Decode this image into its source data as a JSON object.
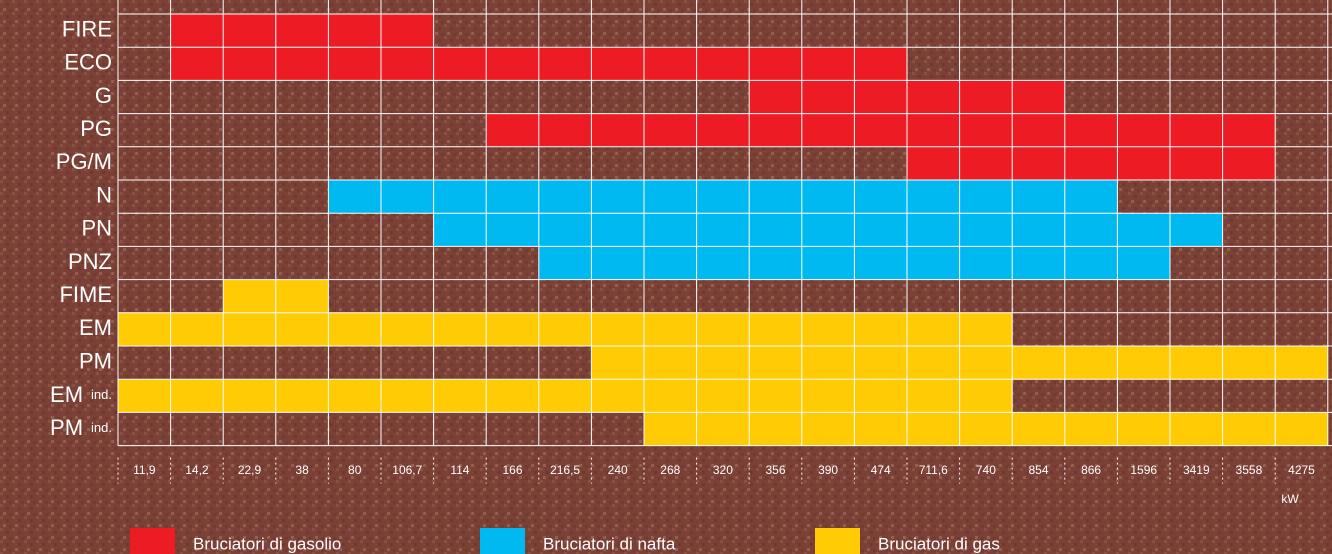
{
  "groups": [
    {
      "name": "Bruciatori di gasolio",
      "color": "#ed1c24"
    },
    {
      "name": "Bruciatori di nafta",
      "color": "#00b9f0"
    },
    {
      "name": "Bruciatori di gas",
      "color": "#ffcb05"
    }
  ],
  "columns": [
    "11,9",
    "14,2",
    "22,9",
    "38",
    "80",
    "106,7",
    "114",
    "166",
    "216,5",
    "240",
    "268",
    "320",
    "356",
    "390",
    "474",
    "711,6",
    "740",
    "854",
    "866",
    "1596",
    "3419",
    "3558",
    "4275"
  ],
  "unit": "kW",
  "rows": [
    {
      "label": "FIRE",
      "group": 0,
      "span": [
        1,
        5
      ]
    },
    {
      "label": "ECO",
      "group": 0,
      "span": [
        1,
        14
      ]
    },
    {
      "label": "G",
      "group": 0,
      "span": [
        12,
        17
      ]
    },
    {
      "label": "PG",
      "group": 0,
      "span": [
        7,
        21
      ]
    },
    {
      "label": "PG/M",
      "group": 0,
      "span": [
        15,
        21
      ]
    },
    {
      "label": "N",
      "group": 1,
      "span": [
        4,
        18
      ]
    },
    {
      "label": "PN",
      "group": 1,
      "span": [
        6,
        20
      ]
    },
    {
      "label": "PNZ",
      "group": 1,
      "span": [
        8,
        19
      ]
    },
    {
      "label": "FIME",
      "group": 2,
      "span": [
        2,
        3
      ]
    },
    {
      "label": "EM",
      "group": 2,
      "span": [
        0,
        16
      ]
    },
    {
      "label": "PM",
      "group": 2,
      "span": [
        9,
        22
      ]
    },
    {
      "label": "EM",
      "sub": "ind.",
      "group": 2,
      "span": [
        0,
        16
      ]
    },
    {
      "label": "PM",
      "sub": "ind.",
      "group": 2,
      "span": [
        10,
        22
      ]
    }
  ]
}
